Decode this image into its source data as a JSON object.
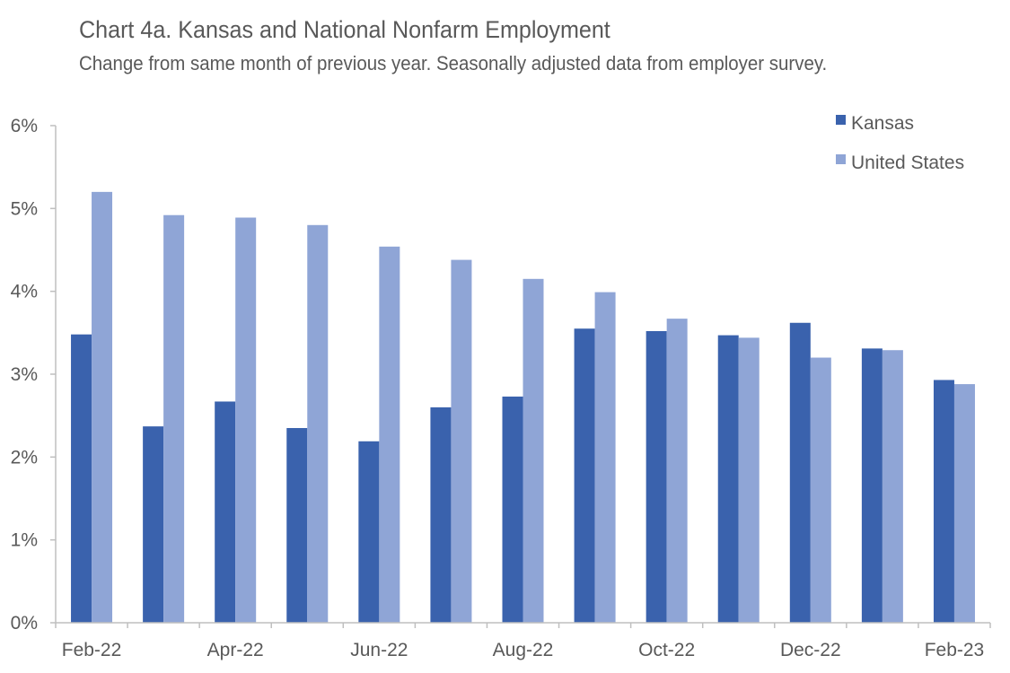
{
  "chart_data": {
    "type": "bar",
    "title": "Chart 4a. Kansas and National Nonfarm Employment",
    "subtitle": "Change from same month of previous year. Seasonally adjusted data from employer survey.",
    "xlabel": "",
    "ylabel": "",
    "ylim": [
      0,
      6
    ],
    "y_ticks": [
      "0%",
      "1%",
      "2%",
      "3%",
      "4%",
      "5%",
      "6%"
    ],
    "categories": [
      "Feb-22",
      "Mar-22",
      "Apr-22",
      "May-22",
      "Jun-22",
      "Jul-22",
      "Aug-22",
      "Sep-22",
      "Oct-22",
      "Nov-22",
      "Dec-22",
      "Jan-23",
      "Feb-23"
    ],
    "x_tick_labels": [
      "Feb-22",
      "",
      "Apr-22",
      "",
      "Jun-22",
      "",
      "Aug-22",
      "",
      "Oct-22",
      "",
      "Dec-22",
      "",
      "Feb-23"
    ],
    "series": [
      {
        "name": "Kansas",
        "color": "#3A62AD",
        "values": [
          3.48,
          2.37,
          2.67,
          2.35,
          2.19,
          2.6,
          2.73,
          3.55,
          3.52,
          3.47,
          3.62,
          3.31,
          2.93
        ]
      },
      {
        "name": "United States",
        "color": "#8FA5D6",
        "values": [
          5.2,
          4.92,
          4.89,
          4.8,
          4.54,
          4.38,
          4.15,
          3.99,
          3.67,
          3.44,
          3.2,
          3.29,
          2.88
        ]
      }
    ],
    "legend_position": "top-right",
    "grid": false
  }
}
